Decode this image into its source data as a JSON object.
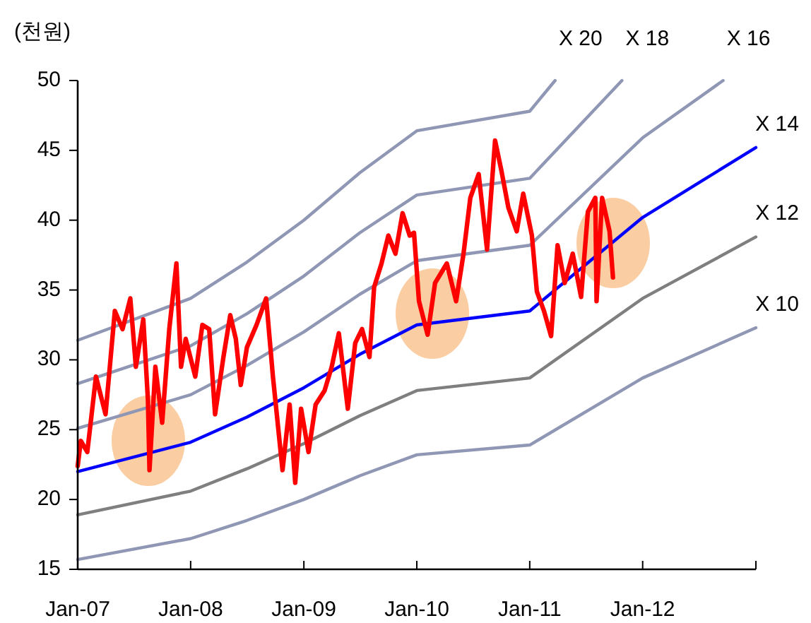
{
  "chart_data": {
    "type": "line",
    "ylabel": "(천원)",
    "xlim": [
      "2007-01-01",
      "2013-01-01"
    ],
    "xticks": [
      {
        "value": "2007-01-01",
        "label": "Jan-07"
      },
      {
        "value": "2008-01-01",
        "label": "Jan-08"
      },
      {
        "value": "2009-01-01",
        "label": "Jan-09"
      },
      {
        "value": "2010-01-01",
        "label": "Jan-10"
      },
      {
        "value": "2011-01-01",
        "label": "Jan-11"
      },
      {
        "value": "2012-01-01",
        "label": "Jan-12"
      },
      {
        "value": "2013-01-01",
        "label": null
      }
    ],
    "ylim": [
      15,
      50
    ],
    "yticks": [
      15,
      20,
      25,
      30,
      35,
      40,
      45,
      50
    ],
    "legend": false,
    "grid": false,
    "marker": "none",
    "line_style": "solid",
    "series": [
      {
        "name": "X 10",
        "color": "#8f97b5",
        "x": [
          "2007-01-01",
          "2008-01-01",
          "2008-07-01",
          "2009-01-01",
          "2009-07-01",
          "2010-01-01",
          "2011-01-01",
          "2012-01-01",
          "2013-01-01"
        ],
        "values": [
          15.7,
          17.2,
          18.5,
          20.0,
          21.7,
          23.2,
          23.9,
          28.7,
          32.3
        ]
      },
      {
        "name": "X 12",
        "color": "#7f7f7f",
        "x": [
          "2007-01-01",
          "2008-01-01",
          "2008-07-01",
          "2009-01-01",
          "2009-07-01",
          "2010-01-01",
          "2011-01-01",
          "2012-01-01",
          "2013-01-01"
        ],
        "values": [
          18.9,
          20.6,
          22.2,
          24.0,
          26.0,
          27.8,
          28.7,
          34.4,
          38.8
        ]
      },
      {
        "name": "X 14",
        "color": "#0000ff",
        "x": [
          "2007-01-01",
          "2008-01-01",
          "2008-07-01",
          "2009-01-01",
          "2009-07-01",
          "2010-01-01",
          "2011-01-01",
          "2012-01-01",
          "2013-01-01"
        ],
        "values": [
          22.0,
          24.1,
          25.9,
          28.0,
          30.4,
          32.5,
          33.5,
          40.2,
          45.2
        ]
      },
      {
        "name": "X 16",
        "color": "#8f97b5",
        "x": [
          "2007-01-01",
          "2008-01-01",
          "2008-07-01",
          "2009-01-01",
          "2009-07-01",
          "2010-01-01",
          "2011-01-01",
          "2012-01-01",
          "2012-09-17"
        ],
        "values": [
          25.1,
          27.5,
          29.6,
          32.0,
          34.7,
          37.1,
          38.2,
          45.9,
          50
        ]
      },
      {
        "name": "X 18",
        "color": "#8f97b5",
        "x": [
          "2007-01-01",
          "2008-01-01",
          "2008-07-01",
          "2009-01-01",
          "2009-07-01",
          "2010-01-01",
          "2011-01-01",
          "2011-10-26"
        ],
        "values": [
          28.3,
          31.0,
          33.3,
          36.0,
          39.1,
          41.8,
          43.0,
          50
        ]
      },
      {
        "name": "X 20",
        "color": "#8f97b5",
        "x": [
          "2007-01-01",
          "2008-01-01",
          "2008-07-01",
          "2009-01-01",
          "2009-07-01",
          "2010-01-01",
          "2011-01-01",
          "2011-03-24"
        ],
        "values": [
          31.4,
          34.4,
          37.0,
          40.0,
          43.4,
          46.4,
          47.8,
          50
        ]
      },
      {
        "color": "#ff0000",
        "x": [
          "2007-01-01",
          "2007-01-11",
          "2007-02-01",
          "2007-03-01",
          "2007-04-01",
          "2007-05-01",
          "2007-05-26",
          "2007-06-20",
          "2007-07-08",
          "2007-08-01",
          "2007-08-16",
          "2007-08-21",
          "2007-09-09",
          "2007-10-01",
          "2007-10-24",
          "2007-11-16",
          "2007-12-01",
          "2007-12-16",
          "2008-01-16",
          "2008-02-08",
          "2008-03-01",
          "2008-03-20",
          "2008-04-16",
          "2008-05-08",
          "2008-05-26",
          "2008-06-11",
          "2008-07-01",
          "2008-08-01",
          "2008-09-01",
          "2008-09-23",
          "2008-10-24",
          "2008-11-16",
          "2008-12-04",
          "2008-12-23",
          "2009-01-16",
          "2009-02-08",
          "2009-03-09",
          "2009-04-01",
          "2009-04-24",
          "2009-05-23",
          "2009-06-16",
          "2009-07-08",
          "2009-08-01",
          "2009-08-16",
          "2009-09-09",
          "2009-10-01",
          "2009-10-24",
          "2009-11-16",
          "2009-12-09",
          "2009-12-23",
          "2010-01-08",
          "2010-02-05",
          "2010-03-01",
          "2010-04-08",
          "2010-05-08",
          "2010-06-01",
          "2010-06-23",
          "2010-07-20",
          "2010-08-16",
          "2010-09-11",
          "2010-10-01",
          "2010-10-24",
          "2010-11-20",
          "2010-12-11",
          "2011-01-08",
          "2011-01-24",
          "2011-02-16",
          "2011-03-11",
          "2011-04-01",
          "2011-04-24",
          "2011-05-20",
          "2011-06-16",
          "2011-07-08",
          "2011-08-01",
          "2011-08-05",
          "2011-08-23",
          "2011-09-16",
          "2011-09-27"
        ],
        "values": [
          22.4,
          24.2,
          23.4,
          28.8,
          26.1,
          33.5,
          32.2,
          34.4,
          29.5,
          32.9,
          27.1,
          22.1,
          29.5,
          25.5,
          32.2,
          36.9,
          29.5,
          31.5,
          28.8,
          32.5,
          32.2,
          26.1,
          30.2,
          33.2,
          31.5,
          28.2,
          30.9,
          32.5,
          34.4,
          28.8,
          22.1,
          26.8,
          21.2,
          26.5,
          23.4,
          26.8,
          27.8,
          29.5,
          31.9,
          26.5,
          31.2,
          32.2,
          30.2,
          35.2,
          36.9,
          38.9,
          37.6,
          40.5,
          38.9,
          39.1,
          34.2,
          31.8,
          35.5,
          36.9,
          34.2,
          37.6,
          41.6,
          43.3,
          37.9,
          45.7,
          43.6,
          40.9,
          39.2,
          41.9,
          38.9,
          34.9,
          33.5,
          31.7,
          38.2,
          35.5,
          37.6,
          34.5,
          40.6,
          41.6,
          34.2,
          41.6,
          39.2,
          35.9
        ]
      }
    ]
  }
}
